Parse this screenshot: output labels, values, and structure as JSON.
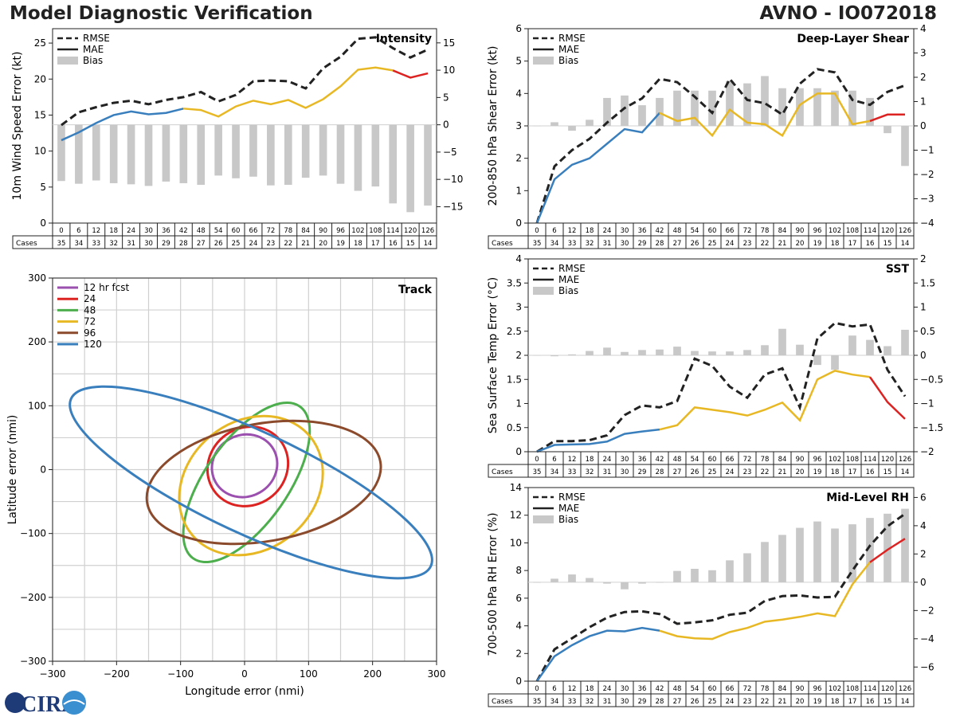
{
  "header": {
    "title": "Model Diagnostic Verification",
    "model": "AVNO - IO072018"
  },
  "table": {
    "hours": [
      0,
      6,
      12,
      18,
      24,
      30,
      36,
      42,
      48,
      54,
      60,
      66,
      72,
      78,
      84,
      90,
      96,
      102,
      108,
      114,
      120,
      126
    ],
    "cases": [
      35,
      34,
      33,
      32,
      31,
      30,
      29,
      28,
      27,
      26,
      25,
      24,
      23,
      22,
      21,
      20,
      19,
      18,
      17,
      16,
      15,
      14
    ],
    "cases_label": "Cases"
  },
  "legend": {
    "rmse": "RMSE",
    "mae": "MAE",
    "bias": "Bias"
  },
  "colors": {
    "early": "#3a7fbd",
    "mid": "#e8b824",
    "late": "#dd2222",
    "rmse": "#222222",
    "bias": "#c8c8c8"
  },
  "chart_data": [
    {
      "id": "intensity",
      "type": "line",
      "title": "Intensity",
      "ylabel": "10m Wind Speed Error (kt)",
      "ylim": [
        0,
        27
      ],
      "yticks": [
        0,
        5,
        10,
        15,
        20,
        25
      ],
      "y2lim": [
        -18,
        17.6
      ],
      "y2ticks": [
        -15,
        -10,
        -5,
        0,
        5,
        10,
        15
      ],
      "x": [
        0,
        6,
        12,
        18,
        24,
        30,
        36,
        42,
        48,
        54,
        60,
        66,
        72,
        78,
        84,
        90,
        96,
        102,
        108,
        114,
        120,
        126
      ],
      "rmse": [
        13.6,
        15.4,
        16.1,
        16.7,
        17.0,
        16.5,
        17.1,
        17.5,
        18.2,
        16.9,
        17.8,
        19.7,
        19.8,
        19.7,
        18.7,
        21.5,
        23.1,
        25.6,
        25.8,
        24.3,
        23.0,
        24.1
      ],
      "mae": [
        11.5,
        12.6,
        13.9,
        15.0,
        15.5,
        15.1,
        15.3,
        15.9,
        15.7,
        14.8,
        16.2,
        17.0,
        16.5,
        17.1,
        16.0,
        17.2,
        19.0,
        21.3,
        21.6,
        21.2,
        20.2,
        20.8
      ],
      "bias": [
        -10.3,
        -10.8,
        -10.2,
        -10.7,
        -10.9,
        -11.2,
        -10.4,
        -10.7,
        -11.0,
        -9.3,
        -9.8,
        -9.5,
        -11.1,
        -11.0,
        -9.7,
        -9.3,
        -10.8,
        -12.1,
        -11.3,
        -14.4,
        -16.0,
        -14.8
      ]
    },
    {
      "id": "shear",
      "type": "line",
      "title": "Deep-Layer Shear",
      "ylabel": "200-850 hPa Shear Error (kt)",
      "ylim": [
        0,
        6
      ],
      "yticks": [
        0,
        1,
        2,
        3,
        4,
        5,
        6
      ],
      "y2lim": [
        -4,
        4
      ],
      "y2ticks": [
        -4,
        -3,
        -2,
        -1,
        0,
        1,
        2,
        3,
        4
      ],
      "x": [
        0,
        6,
        12,
        18,
        24,
        30,
        36,
        42,
        48,
        54,
        60,
        66,
        72,
        78,
        84,
        90,
        96,
        102,
        108,
        114,
        120,
        126
      ],
      "rmse": [
        0.0,
        1.75,
        2.25,
        2.6,
        3.1,
        3.55,
        3.85,
        4.45,
        4.35,
        3.9,
        3.4,
        4.45,
        3.8,
        3.7,
        3.35,
        4.3,
        4.75,
        4.65,
        3.8,
        3.65,
        4.05,
        4.25
      ],
      "mae": [
        0.0,
        1.35,
        1.8,
        2.0,
        2.45,
        2.9,
        2.8,
        3.4,
        3.15,
        3.25,
        2.7,
        3.5,
        3.1,
        3.05,
        2.7,
        3.65,
        4.0,
        4.0,
        3.05,
        3.15,
        3.35,
        3.35
      ],
      "bias": [
        0.0,
        0.15,
        -0.2,
        0.25,
        1.15,
        1.25,
        0.85,
        1.15,
        1.45,
        1.45,
        1.45,
        1.85,
        1.75,
        2.05,
        1.55,
        1.55,
        1.55,
        1.45,
        1.45,
        1.15,
        -0.3,
        -1.65
      ]
    },
    {
      "id": "sst",
      "type": "line",
      "title": "SST",
      "ylabel": "Sea Surface Temp Error (°C)",
      "ylim": [
        0,
        4
      ],
      "yticks": [
        0,
        0.5,
        1,
        1.5,
        2,
        2.5,
        3,
        3.5,
        4
      ],
      "y2lim": [
        -2,
        2
      ],
      "y2ticks": [
        -2,
        -1.5,
        -1,
        -0.5,
        0,
        0.5,
        1,
        1.5,
        2
      ],
      "x": [
        0,
        6,
        12,
        18,
        24,
        30,
        36,
        42,
        48,
        54,
        60,
        66,
        72,
        78,
        84,
        90,
        96,
        102,
        108,
        114,
        120,
        126
      ],
      "rmse": [
        0.0,
        0.22,
        0.22,
        0.24,
        0.34,
        0.76,
        0.96,
        0.92,
        1.05,
        1.93,
        1.78,
        1.35,
        1.12,
        1.6,
        1.73,
        0.92,
        2.35,
        2.67,
        2.6,
        2.64,
        1.7,
        1.15
      ],
      "mae": [
        0.0,
        0.14,
        0.15,
        0.16,
        0.21,
        0.37,
        0.42,
        0.46,
        0.55,
        0.92,
        0.87,
        0.82,
        0.75,
        0.87,
        1.02,
        0.65,
        1.5,
        1.68,
        1.6,
        1.55,
        1.03,
        0.68
      ],
      "bias": [
        0.0,
        -0.02,
        0.02,
        0.09,
        0.16,
        0.07,
        0.11,
        0.12,
        0.18,
        0.09,
        0.08,
        0.08,
        0.11,
        0.21,
        0.55,
        0.22,
        -0.2,
        -0.3,
        0.41,
        0.32,
        0.19,
        0.53
      ]
    },
    {
      "id": "rh",
      "type": "line",
      "title": "Mid-Level RH",
      "ylabel": "700-500 hPa RH Error (%)",
      "ylim": [
        0,
        14
      ],
      "yticks": [
        0,
        2,
        4,
        6,
        8,
        10,
        12,
        14
      ],
      "y2lim": [
        -7,
        6.7
      ],
      "y2ticks": [
        -6,
        -4,
        -2,
        0,
        2,
        4,
        6
      ],
      "x": [
        0,
        6,
        12,
        18,
        24,
        30,
        36,
        42,
        48,
        54,
        60,
        66,
        72,
        78,
        84,
        90,
        96,
        102,
        108,
        114,
        120,
        126
      ],
      "rmse": [
        0.0,
        2.3,
        3.1,
        3.9,
        4.6,
        5.0,
        5.05,
        4.85,
        4.15,
        4.25,
        4.4,
        4.8,
        4.95,
        5.8,
        6.15,
        6.2,
        6.05,
        6.1,
        8.0,
        9.8,
        11.2,
        12.1
      ],
      "mae": [
        0.0,
        1.8,
        2.6,
        3.25,
        3.65,
        3.6,
        3.85,
        3.65,
        3.25,
        3.1,
        3.05,
        3.55,
        3.85,
        4.3,
        4.45,
        4.65,
        4.9,
        4.7,
        7.0,
        8.6,
        9.5,
        10.3
      ],
      "bias": [
        0.0,
        0.25,
        0.55,
        0.3,
        -0.1,
        -0.5,
        -0.1,
        0.0,
        0.8,
        0.95,
        0.85,
        1.55,
        2.05,
        2.85,
        3.35,
        3.85,
        4.3,
        3.8,
        4.1,
        4.55,
        4.85,
        5.2
      ]
    },
    {
      "id": "track",
      "type": "scatter",
      "title": "Track",
      "xlabel": "Longitude error (nmi)",
      "ylabel": "Latitude error (nmi)",
      "xlim": [
        -300,
        300
      ],
      "ylim": [
        -300,
        300
      ],
      "xticks": [
        -300,
        -200,
        -100,
        0,
        100,
        200,
        300
      ],
      "yticks": [
        -300,
        -200,
        -100,
        0,
        100,
        200,
        300
      ],
      "grid": true,
      "ellipses": [
        {
          "label": "12 hr fcst",
          "color": "#9b4fae",
          "cx": 0,
          "cy": 6,
          "rx": 52,
          "ry": 48,
          "angle": 30
        },
        {
          "label": "24",
          "color": "#dd2222",
          "cx": 5,
          "cy": 5,
          "rx": 65,
          "ry": 60,
          "angle": 40
        },
        {
          "label": "48",
          "color": "#4cae4c",
          "cx": 3,
          "cy": -20,
          "rx": 145,
          "ry": 65,
          "angle": 55
        },
        {
          "label": "72",
          "color": "#e8b824",
          "cx": 10,
          "cy": -25,
          "rx": 120,
          "ry": 100,
          "angle": 40
        },
        {
          "label": "96",
          "color": "#8b4a2b",
          "cx": 30,
          "cy": -20,
          "rx": 185,
          "ry": 92,
          "angle": 10
        },
        {
          "label": "120",
          "color": "#3a7fbd",
          "cx": 10,
          "cy": -20,
          "rx": 310,
          "ry": 80,
          "angle": -25
        }
      ]
    }
  ],
  "logo": {
    "text": "CIRA"
  }
}
